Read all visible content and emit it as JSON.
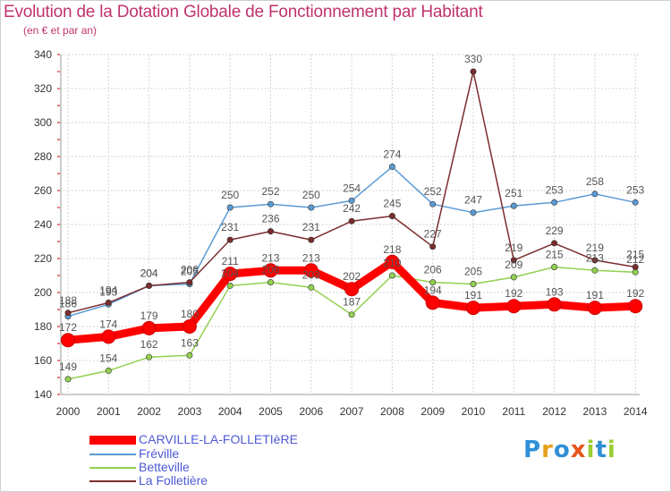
{
  "title": "Evolution de la Dotation Globale de Fonctionnement par Habitant",
  "subtitle": "(en € et par an)",
  "logo_text": "Proxiti",
  "chart_data": {
    "type": "line",
    "title": "Evolution de la Dotation Globale de Fonctionnement par Habitant",
    "subtitle": "(en € et par an)",
    "x": [
      2000,
      2001,
      2002,
      2003,
      2004,
      2005,
      2006,
      2007,
      2008,
      2009,
      2010,
      2011,
      2012,
      2013,
      2014
    ],
    "ylim": [
      140,
      340
    ],
    "yticks": [
      140,
      160,
      180,
      200,
      220,
      240,
      260,
      280,
      300,
      320,
      340
    ],
    "grid": true,
    "legend_position": "bottom-left",
    "series": [
      {
        "name": "CARVILLE-LA-FOLLETIèRE",
        "color": "#ff0000",
        "values": [
          172,
          174,
          179,
          180,
          211,
          213,
          213,
          202,
          218,
          194,
          191,
          192,
          193,
          191,
          192
        ]
      },
      {
        "name": "Fréville",
        "color": "#5b9bd5",
        "values": [
          186,
          193,
          204,
          205,
          250,
          252,
          250,
          254,
          274,
          252,
          247,
          251,
          253,
          258,
          253
        ]
      },
      {
        "name": "Betteville",
        "color": "#92d050",
        "values": [
          149,
          154,
          162,
          163,
          204,
          206,
          203,
          187,
          210,
          206,
          205,
          209,
          215,
          213,
          212
        ]
      },
      {
        "name": "La Folletière",
        "color": "#7b2c2c",
        "values": [
          188,
          194,
          204,
          206,
          231,
          236,
          231,
          242,
          245,
          227,
          330,
          219,
          229,
          219,
          215
        ]
      }
    ]
  }
}
